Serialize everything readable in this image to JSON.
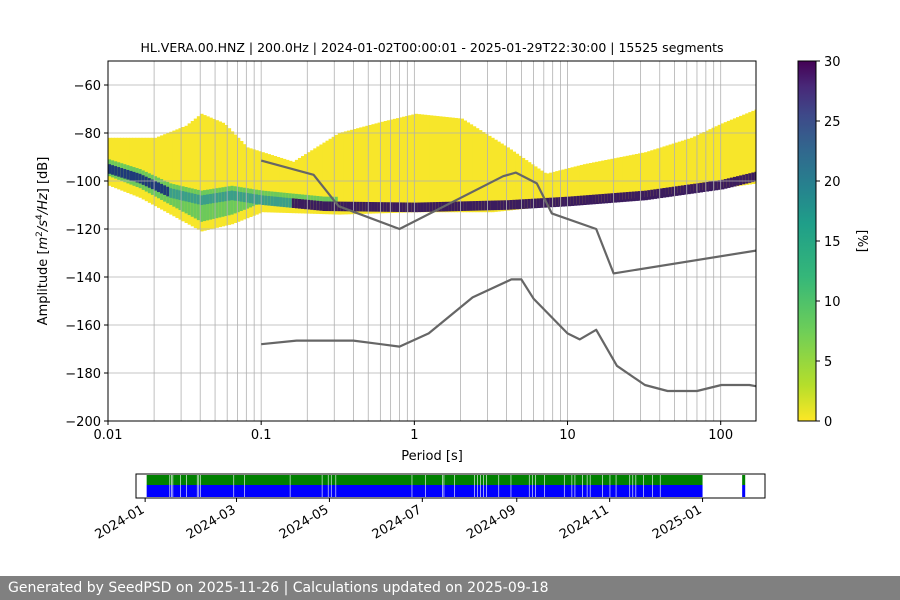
{
  "chart_data": [
    {
      "type": "heatmap",
      "title": "HL.VERA.00.HNZ | 200.0Hz | 2024-01-02T00:00:01 - 2025-01-29T22:30:00 | 15525 segments",
      "xlabel_prefix": "Period [s]",
      "ylabel": "Amplitude [m²/s⁴/Hz] [dB]",
      "x_scale": "log",
      "xlim": [
        0.01,
        170
      ],
      "ylim": [
        -200,
        -50
      ],
      "x_ticks": [
        0.01,
        0.1,
        1,
        10,
        100
      ],
      "x_tick_labels": [
        "0.01",
        "0.1",
        "1",
        "10",
        "100"
      ],
      "y_ticks": [
        -200,
        -180,
        -160,
        -140,
        -120,
        -100,
        -80,
        -60
      ],
      "y_tick_labels": [
        "−200",
        "−180",
        "−160",
        "−140",
        "−120",
        "−100",
        "−80",
        "−60"
      ],
      "grid": true,
      "colormap": "viridis_r",
      "colorbar": {
        "label": "[%]",
        "range": [
          0,
          30
        ],
        "ticks": [
          0,
          5,
          10,
          15,
          20,
          25,
          30
        ],
        "tick_labels": [
          "0",
          "5",
          "10",
          "15",
          "20",
          "25",
          "30"
        ]
      },
      "series": [
        {
          "style": "model-curve-high",
          "x": [
            0.1,
            0.22,
            0.32,
            0.8,
            3.8,
            4.6,
            6.3,
            7.9,
            15.4,
            20,
            170
          ],
          "y": [
            -91.5,
            -97.4,
            -110.5,
            -120,
            -98,
            -96.5,
            -101,
            -113.5,
            -120,
            -138.5,
            -129
          ]
        },
        {
          "style": "model-curve-low",
          "x": [
            0.1,
            0.17,
            0.4,
            0.8,
            1.24,
            2.4,
            4.3,
            5.0,
            6.0,
            10,
            12,
            15.4,
            21,
            32,
            45,
            70,
            101,
            154,
            170
          ],
          "y": [
            -168,
            -166.5,
            -166.5,
            -169,
            -163.5,
            -148.5,
            -141,
            -141,
            -149,
            -163.5,
            -166,
            -162,
            -177,
            -185,
            -187.5,
            -187.5,
            -185,
            -185,
            -185.5
          ]
        }
      ]
    },
    {
      "type": "bar",
      "x_ticks": [
        "2024-01",
        "2024-03",
        "2024-05",
        "2024-07",
        "2024-09",
        "2024-11",
        "2025-01"
      ],
      "xlim_days_since_2024_01_01": [
        -6,
        407
      ],
      "data_range": [
        "2024-01-02",
        "2024-12-31"
      ],
      "extra_segment_days": [
        392,
        394
      ],
      "gap_days": [
        16,
        17,
        18,
        23,
        27,
        34,
        35,
        36,
        58,
        65,
        95,
        116,
        120,
        122,
        125,
        175,
        184,
        195,
        196,
        203,
        216,
        218,
        220,
        222,
        224,
        232,
        240,
        252,
        254,
        256,
        262,
        275,
        280,
        282,
        287,
        290,
        292,
        300,
        305,
        309,
        318,
        320,
        322,
        327,
        333,
        338
      ],
      "colors": {
        "upper": "#008000",
        "lower": "#0000ff"
      }
    }
  ],
  "footer": "Generated by SeedPSD on 2025-11-26 | Calculations updated on 2025-09-18"
}
